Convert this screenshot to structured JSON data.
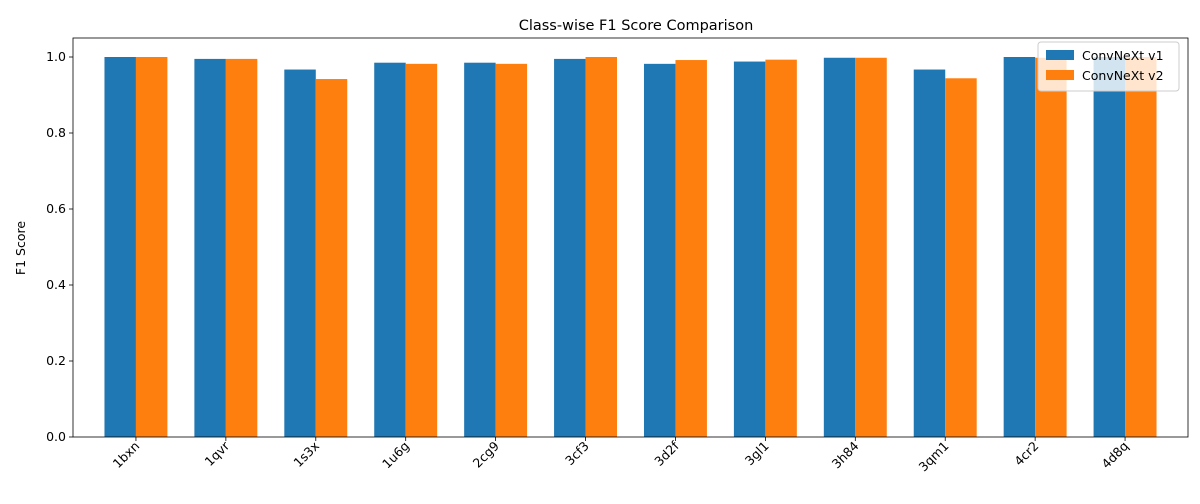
{
  "chart_data": {
    "type": "bar",
    "title": "Class-wise F1 Score Comparison",
    "xlabel": "",
    "ylabel": "F1 Score",
    "categories": [
      "1bxn",
      "1qvr",
      "1s3x",
      "1u6g",
      "2cg9",
      "3cf3",
      "3d2f",
      "3gl1",
      "3h84",
      "3qm1",
      "4cr2",
      "4d8q"
    ],
    "series": [
      {
        "name": "ConvNeXt v1",
        "color": "#1f77b4",
        "values": [
          1.0,
          0.995,
          0.967,
          0.985,
          0.985,
          0.995,
          0.982,
          0.988,
          0.998,
          0.967,
          1.0,
          1.0
        ]
      },
      {
        "name": "ConvNeXt v2",
        "color": "#ff7f0e",
        "values": [
          1.0,
          0.995,
          0.942,
          0.982,
          0.982,
          1.0,
          0.992,
          0.993,
          0.998,
          0.944,
          0.998,
          1.0
        ]
      }
    ],
    "ylim": [
      0,
      1.05
    ],
    "yticks": [
      "0.0",
      "0.2",
      "0.4",
      "0.6",
      "0.8",
      "1.0"
    ],
    "grid": false,
    "legend_position": "top-right",
    "xtick_rotation": 45
  }
}
